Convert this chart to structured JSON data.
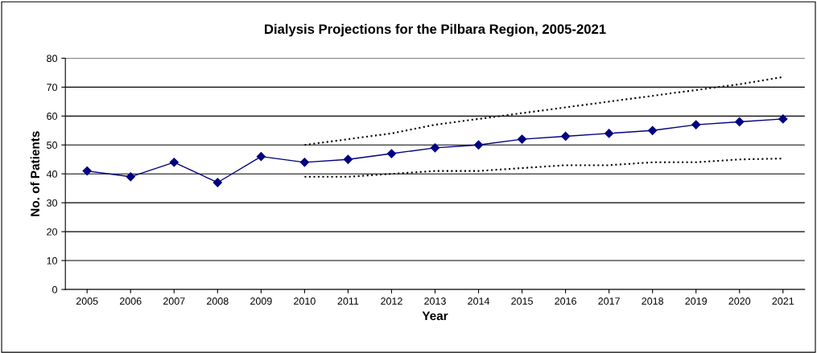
{
  "chart_data": {
    "type": "line",
    "title": "Dialysis Projections for the Pilbara Region, 2005-2021",
    "xlabel": "Year",
    "ylabel": "No. of Patients",
    "categories": [
      "2005",
      "2006",
      "2007",
      "2008",
      "2009",
      "2010",
      "2011",
      "2012",
      "2013",
      "2014",
      "2015",
      "2016",
      "2017",
      "2018",
      "2019",
      "2020",
      "2021"
    ],
    "series": [
      {
        "color": "#000080",
        "marker": "diamond",
        "line_style": "solid",
        "values": [
          41,
          39,
          44,
          37,
          46,
          44,
          45,
          47,
          49,
          50,
          52,
          53,
          54,
          55,
          57,
          58,
          59
        ]
      },
      {
        "color": "#000000",
        "marker": "none",
        "line_style": "dotted",
        "values": [
          null,
          null,
          null,
          null,
          null,
          50,
          52,
          54,
          57,
          59,
          61,
          63,
          65,
          67,
          69,
          71,
          73.5
        ]
      },
      {
        "color": "#000000",
        "marker": "none",
        "line_style": "dotted",
        "values": [
          null,
          null,
          null,
          null,
          null,
          39,
          39,
          40,
          41,
          41,
          42,
          43,
          43,
          44,
          44,
          45,
          45.3
        ]
      }
    ],
    "ylim": [
      0,
      80
    ],
    "yticks": [
      0,
      10,
      20,
      30,
      40,
      50,
      60,
      70,
      80
    ],
    "grid": "y",
    "legend": false
  }
}
